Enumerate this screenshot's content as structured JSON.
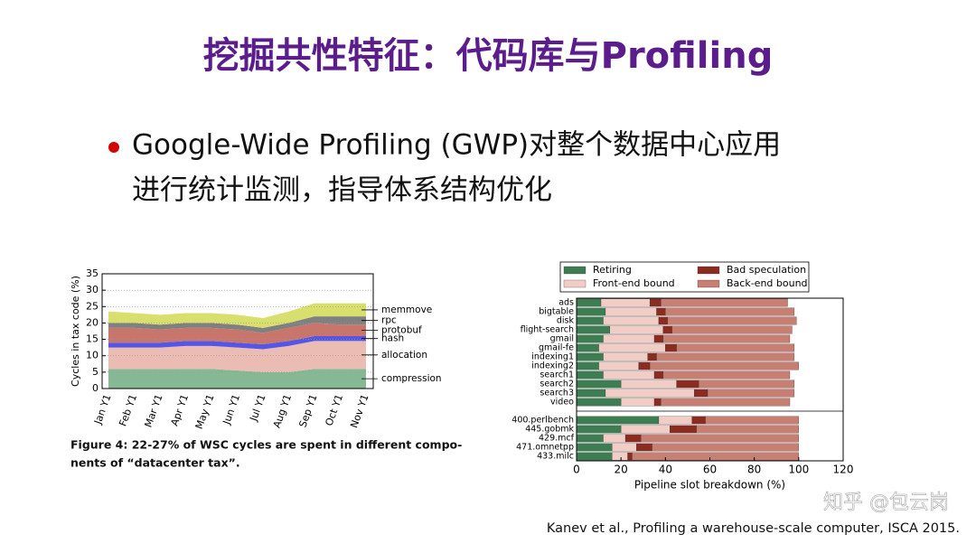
{
  "title": "挖掘共性特征：代码库与Profiling",
  "bullet": [
    "Google-Wide Profiling (GWP)对整个数据中心应用",
    "进行统计监测，指导体系结构优化"
  ],
  "chart_data": [
    {
      "type": "area",
      "stacked": true,
      "ylabel": "Cycles in tax code (%)",
      "categories": [
        "Jan Y1",
        "Feb Y1",
        "Mar Y1",
        "Apr Y1",
        "May Y1",
        "Jun Y1",
        "Jul Y1",
        "Aug Y1",
        "Sep Y1",
        "Oct Y1",
        "Nov Y1"
      ],
      "series": [
        {
          "name": "compression",
          "color": "#86b894",
          "values": [
            6,
            6,
            6,
            6,
            6,
            5.5,
            5,
            5,
            6,
            6,
            6
          ]
        },
        {
          "name": "allocation",
          "color": "#ebbcb4",
          "values": [
            6.5,
            6.5,
            6.5,
            7,
            7,
            7,
            7,
            8,
            8.5,
            8.5,
            8.5
          ]
        },
        {
          "name": "hash",
          "color": "#5656e6",
          "values": [
            1.5,
            1.5,
            1.5,
            1.5,
            1.5,
            1.5,
            1.5,
            1.5,
            1.5,
            1.5,
            1.5
          ]
        },
        {
          "name": "protobuf",
          "color": "#c8766c",
          "values": [
            4.5,
            4.5,
            4,
            4,
            4,
            4,
            3.5,
            4,
            4,
            3.5,
            3.5
          ]
        },
        {
          "name": "rpc",
          "color": "#808080",
          "values": [
            1.5,
            1.5,
            1.5,
            1.5,
            1.5,
            1.5,
            1.5,
            1.5,
            2,
            2.5,
            2.5
          ]
        },
        {
          "name": "memmove",
          "color": "#d9df6c",
          "values": [
            3.5,
            3,
            3,
            3,
            3,
            3,
            3,
            3.5,
            4,
            4,
            4
          ]
        }
      ],
      "ylim": [
        0,
        35
      ],
      "yticks": [
        0,
        5,
        10,
        15,
        20,
        25,
        30,
        35
      ],
      "grid": true
    },
    {
      "type": "bar",
      "orientation": "horizontal",
      "stacked": true,
      "xlabel": "Pipeline slot breakdown (%)",
      "categories": [
        "ads",
        "bigtable",
        "disk",
        "flight-search",
        "gmail",
        "gmail-fe",
        "indexing1",
        "indexing2",
        "search1",
        "search2",
        "search3",
        "video",
        null,
        "400.perlbench",
        "445.gobmk",
        "429.mcf",
        "471.omnetpp",
        "433.milc"
      ],
      "series": [
        {
          "name": "Retiring",
          "color": "#3d7d52",
          "values": [
            11,
            13,
            12,
            15,
            12,
            10,
            12,
            10,
            12,
            20,
            13,
            20,
            null,
            37,
            20,
            12,
            16,
            16
          ]
        },
        {
          "name": "Front-end bound",
          "color": "#f2cdc5",
          "values": [
            22,
            23,
            25,
            24,
            23,
            30,
            20,
            18,
            23,
            25,
            40,
            15,
            null,
            15,
            22,
            10,
            11,
            7
          ]
        },
        {
          "name": "Bad speculation",
          "color": "#8c2b20",
          "values": [
            5,
            4,
            4,
            4,
            4,
            5,
            4,
            5,
            4,
            10,
            6,
            3,
            null,
            6,
            12,
            7,
            7,
            2
          ]
        },
        {
          "name": "Back-end bound",
          "color": "#c97e72",
          "values": [
            57,
            58,
            58,
            54,
            57,
            53,
            62,
            67,
            57,
            43,
            39,
            58,
            null,
            42,
            46,
            71,
            66,
            75
          ]
        }
      ],
      "xlim": [
        0,
        120
      ],
      "xticks": [
        0,
        20,
        40,
        60,
        80,
        100,
        120
      ],
      "legend": "top"
    }
  ],
  "figure_caption": [
    "Figure 4: 22-27% of WSC cycles are spent in different compo-",
    "nents of “datacenter tax”."
  ],
  "citation": "Kanev et al., Profiling a warehouse-scale computer, ISCA 2015.",
  "watermark": "知乎 @包云岗"
}
